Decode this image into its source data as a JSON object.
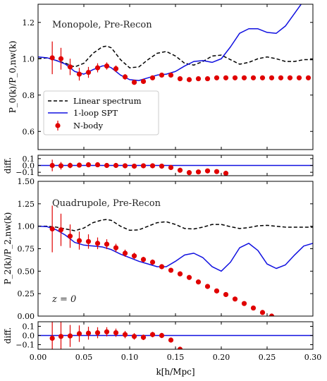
{
  "chart_data": [
    {
      "id": "monopole",
      "type": "line",
      "annotation": "Monopole, Pre-Recon",
      "ylabel": "P_0(k)/P_0,nw(k)",
      "xlim": [
        0.0,
        0.3
      ],
      "ylim": [
        0.5,
        1.3
      ],
      "yticks": [
        "0.6",
        "0.8",
        "1.0",
        "1.2"
      ],
      "legend": {
        "placement": "lower-left",
        "entries": [
          "Linear spectrum",
          "1-loop SPT",
          "N-body"
        ]
      },
      "series": [
        {
          "name": "Linear spectrum",
          "style": "dashed",
          "color": "#000000",
          "x": [
            0.0,
            0.01,
            0.02,
            0.03,
            0.04,
            0.05,
            0.06,
            0.07,
            0.075,
            0.08,
            0.09,
            0.1,
            0.11,
            0.12,
            0.13,
            0.14,
            0.15,
            0.16,
            0.17,
            0.18,
            0.19,
            0.2,
            0.21,
            0.22,
            0.23,
            0.24,
            0.25,
            0.26,
            0.27,
            0.28,
            0.29,
            0.3
          ],
          "y": [
            1.0,
            1.005,
            0.99,
            0.975,
            0.955,
            0.975,
            1.03,
            1.065,
            1.07,
            1.06,
            0.995,
            0.95,
            0.955,
            0.995,
            1.03,
            1.04,
            1.015,
            0.975,
            0.965,
            0.985,
            1.015,
            1.02,
            0.995,
            0.97,
            0.98,
            1.0,
            1.01,
            1.0,
            0.985,
            0.985,
            0.995,
            0.995
          ]
        },
        {
          "name": "1-loop SPT",
          "style": "solid",
          "color": "#1010e0",
          "x": [
            0.0,
            0.01,
            0.02,
            0.03,
            0.04,
            0.05,
            0.06,
            0.07,
            0.075,
            0.08,
            0.09,
            0.1,
            0.11,
            0.12,
            0.13,
            0.14,
            0.15,
            0.16,
            0.17,
            0.18,
            0.19,
            0.2,
            0.21,
            0.22,
            0.23,
            0.24,
            0.25,
            0.26,
            0.27,
            0.28,
            0.29,
            0.3
          ],
          "y": [
            1.01,
            1.005,
            0.99,
            0.97,
            0.93,
            0.915,
            0.94,
            0.96,
            0.962,
            0.95,
            0.91,
            0.885,
            0.88,
            0.895,
            0.91,
            0.915,
            0.93,
            0.96,
            0.985,
            0.99,
            0.98,
            1.0,
            1.065,
            1.14,
            1.165,
            1.165,
            1.145,
            1.14,
            1.18,
            1.25,
            1.32,
            1.38
          ]
        },
        {
          "name": "N-body",
          "style": "points",
          "color": "#e00000",
          "x": [
            0.0155,
            0.025,
            0.035,
            0.045,
            0.055,
            0.065,
            0.075,
            0.085,
            0.095,
            0.105,
            0.115,
            0.125,
            0.135,
            0.145,
            0.155,
            0.165,
            0.175,
            0.185,
            0.195,
            0.205,
            0.215,
            0.225,
            0.235,
            0.245,
            0.255,
            0.265,
            0.275,
            0.285,
            0.295
          ],
          "y": [
            1.005,
            1.0,
            0.955,
            0.915,
            0.925,
            0.95,
            0.96,
            0.945,
            0.9,
            0.87,
            0.875,
            0.895,
            0.91,
            0.91,
            0.89,
            0.885,
            0.89,
            0.89,
            0.895,
            0.895,
            0.895,
            0.895,
            0.895,
            0.895,
            0.895,
            0.895,
            0.895,
            0.895,
            0.895
          ],
          "err": [
            0.09,
            0.06,
            0.045,
            0.035,
            0.03,
            0.025,
            0.02,
            0.018,
            0.015,
            0.013,
            0.012,
            0.011,
            0.01,
            0.009,
            0.008,
            0.008,
            0.007,
            0.007,
            0.006,
            0.006,
            0.006,
            0.005,
            0.005,
            0.005,
            0.005,
            0.005,
            0.005,
            0.005,
            0.005
          ]
        }
      ]
    },
    {
      "id": "monopole-diff",
      "type": "line",
      "ylabel": "diff.",
      "xlim": [
        0.0,
        0.3
      ],
      "ylim": [
        -0.15,
        0.15
      ],
      "yticks": [
        "-0.1",
        "0.0",
        "0.1"
      ],
      "series": [
        {
          "name": "",
          "style": "solid",
          "color": "#1010e0",
          "x": [
            0.0,
            0.3
          ],
          "y": [
            0.0,
            0.0
          ]
        },
        {
          "name": "",
          "style": "points",
          "color": "#e00000",
          "x": [
            0.0155,
            0.025,
            0.035,
            0.045,
            0.055,
            0.065,
            0.075,
            0.085,
            0.095,
            0.105,
            0.115,
            0.125,
            0.135,
            0.145,
            0.155,
            0.165,
            0.175,
            0.185,
            0.195,
            0.205
          ],
          "y": [
            0.0,
            -0.005,
            0.0,
            0.005,
            0.01,
            0.01,
            0.0,
            0.0,
            -0.005,
            -0.01,
            -0.005,
            -0.005,
            -0.01,
            -0.03,
            -0.07,
            -0.105,
            -0.095,
            -0.08,
            -0.09,
            -0.115
          ],
          "err": [
            0.085,
            0.055,
            0.04,
            0.03,
            0.025,
            0.02,
            0.018,
            0.015,
            0.013,
            0.012,
            0.011,
            0.01,
            0.009,
            0.008,
            0.008,
            0.007,
            0.007,
            0.006,
            0.006,
            0.006
          ]
        }
      ]
    },
    {
      "id": "quadrupole",
      "type": "line",
      "annotation": "Quadrupole, Pre-Recon",
      "ylabel": "P_2(k)/P_2,nw(k)",
      "xlim": [
        0.0,
        0.3
      ],
      "ylim": [
        0.0,
        1.5
      ],
      "yticks": [
        "0.00",
        "0.25",
        "0.50",
        "0.75",
        "1.00",
        "1.25",
        "1.50"
      ],
      "redshift_label": "z = 0",
      "series": [
        {
          "name": "Linear spectrum",
          "style": "dashed",
          "color": "#000000",
          "x": [
            0.0,
            0.01,
            0.02,
            0.03,
            0.04,
            0.05,
            0.06,
            0.07,
            0.075,
            0.08,
            0.09,
            0.1,
            0.11,
            0.12,
            0.13,
            0.14,
            0.15,
            0.16,
            0.17,
            0.18,
            0.19,
            0.2,
            0.21,
            0.22,
            0.23,
            0.24,
            0.25,
            0.26,
            0.27,
            0.28,
            0.29,
            0.3
          ],
          "y": [
            1.0,
            1.0,
            0.99,
            0.97,
            0.95,
            0.98,
            1.04,
            1.07,
            1.075,
            1.065,
            1.0,
            0.955,
            0.96,
            1.0,
            1.04,
            1.05,
            1.02,
            0.975,
            0.97,
            0.99,
            1.02,
            1.02,
            0.995,
            0.975,
            0.985,
            1.005,
            1.01,
            1.0,
            0.99,
            0.99,
            0.99,
            0.99
          ]
        },
        {
          "name": "1-loop SPT",
          "style": "solid",
          "color": "#1010e0",
          "x": [
            0.0,
            0.01,
            0.02,
            0.03,
            0.04,
            0.05,
            0.06,
            0.07,
            0.08,
            0.09,
            0.1,
            0.11,
            0.12,
            0.13,
            0.14,
            0.15,
            0.16,
            0.17,
            0.18,
            0.19,
            0.2,
            0.21,
            0.22,
            0.23,
            0.24,
            0.25,
            0.26,
            0.27,
            0.28,
            0.29,
            0.3
          ],
          "y": [
            1.0,
            0.995,
            0.96,
            0.9,
            0.82,
            0.79,
            0.78,
            0.77,
            0.74,
            0.69,
            0.65,
            0.61,
            0.58,
            0.55,
            0.55,
            0.61,
            0.68,
            0.7,
            0.65,
            0.55,
            0.5,
            0.6,
            0.76,
            0.81,
            0.73,
            0.58,
            0.53,
            0.57,
            0.68,
            0.78,
            0.81
          ]
        },
        {
          "name": "N-body",
          "style": "points",
          "color": "#e00000",
          "x": [
            0.0155,
            0.025,
            0.035,
            0.045,
            0.055,
            0.065,
            0.075,
            0.085,
            0.095,
            0.105,
            0.115,
            0.125,
            0.135,
            0.145,
            0.155,
            0.165,
            0.175,
            0.185,
            0.195,
            0.205,
            0.215,
            0.225,
            0.235,
            0.245,
            0.255
          ],
          "y": [
            0.97,
            0.96,
            0.89,
            0.84,
            0.83,
            0.81,
            0.8,
            0.76,
            0.7,
            0.67,
            0.63,
            0.6,
            0.55,
            0.51,
            0.47,
            0.43,
            0.38,
            0.33,
            0.28,
            0.24,
            0.19,
            0.14,
            0.09,
            0.04,
            0.0
          ],
          "err": [
            0.26,
            0.18,
            0.13,
            0.1,
            0.08,
            0.065,
            0.055,
            0.045,
            0.04,
            0.035,
            0.03,
            0.03,
            0.028,
            0.026,
            0.025,
            0.024,
            0.023,
            0.022,
            0.021,
            0.02,
            0.019,
            0.018,
            0.018,
            0.017,
            0.017
          ]
        }
      ]
    },
    {
      "id": "quadrupole-diff",
      "type": "line",
      "ylabel": "diff.",
      "xlabel": "k[h/Mpc]",
      "xlim": [
        0.0,
        0.3
      ],
      "ylim": [
        -0.15,
        0.15
      ],
      "yticks": [
        "-0.1",
        "0.0",
        "0.1"
      ],
      "xticks": [
        "0.00",
        "0.05",
        "0.10",
        "0.15",
        "0.20",
        "0.25",
        "0.30"
      ],
      "series": [
        {
          "name": "",
          "style": "solid",
          "color": "#1010e0",
          "x": [
            0.0,
            0.3
          ],
          "y": [
            0.0,
            0.0
          ]
        },
        {
          "name": "",
          "style": "points",
          "color": "#e00000",
          "x": [
            0.0155,
            0.025,
            0.035,
            0.045,
            0.055,
            0.065,
            0.075,
            0.085,
            0.095,
            0.105,
            0.115,
            0.125,
            0.135,
            0.145,
            0.155
          ],
          "y": [
            -0.03,
            -0.01,
            -0.005,
            0.02,
            0.025,
            0.03,
            0.04,
            0.03,
            0.01,
            -0.01,
            -0.02,
            0.01,
            0.0,
            -0.05,
            -0.15
          ],
          "err": [
            0.25,
            0.17,
            0.12,
            0.09,
            0.07,
            0.06,
            0.05,
            0.045,
            0.04,
            0.035,
            0.03,
            0.03,
            0.028,
            0.026,
            0.025
          ]
        }
      ]
    }
  ]
}
